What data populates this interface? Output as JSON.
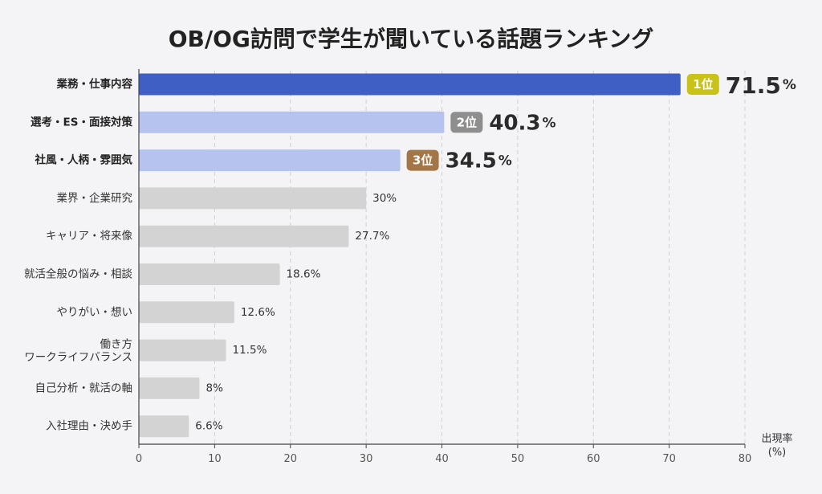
{
  "chart_data": {
    "type": "bar",
    "orientation": "horizontal",
    "title": "OB/OG訪問で学生が聞いている話題ランキング",
    "categories": [
      [
        "業務・仕事内容"
      ],
      [
        "選考・ES・面接対策"
      ],
      [
        "社風・人柄・雰囲気"
      ],
      [
        "業界・企業研究"
      ],
      [
        "キャリア・将来像"
      ],
      [
        "就活全般の悩み・相談"
      ],
      [
        "やりがい・想い"
      ],
      [
        "働き方",
        "ワークライフバランス"
      ],
      [
        "自己分析・就活の軸"
      ],
      [
        "入社理由・決め手"
      ]
    ],
    "values": [
      71.5,
      40.3,
      34.5,
      30,
      27.7,
      18.6,
      12.6,
      11.5,
      8,
      6.6
    ],
    "value_labels": [
      "71.5",
      "40.3",
      "34.5",
      "30%",
      "27.7%",
      "18.6%",
      "12.6%",
      "11.5%",
      "8%",
      "6.6%"
    ],
    "percent_suffix": "%",
    "rank_badges": [
      "1位",
      "2位",
      "3位"
    ],
    "xlim": [
      0,
      80
    ],
    "xticks": [
      0,
      10,
      20,
      30,
      40,
      50,
      60,
      70,
      80
    ],
    "xlabel": [
      "出現率",
      "(%)"
    ],
    "grid": true,
    "colors": {
      "first_bar": "#3f5fc4",
      "top3_bar": "#b5c3ee",
      "other_bar": "#d3d3d3",
      "badge_1": "#c9c21a",
      "badge_2": "#8e8e8e",
      "badge_3": "#a47546",
      "grid": "#cfcfd4",
      "axis": "#444444",
      "background": "#f4f4f6"
    }
  }
}
